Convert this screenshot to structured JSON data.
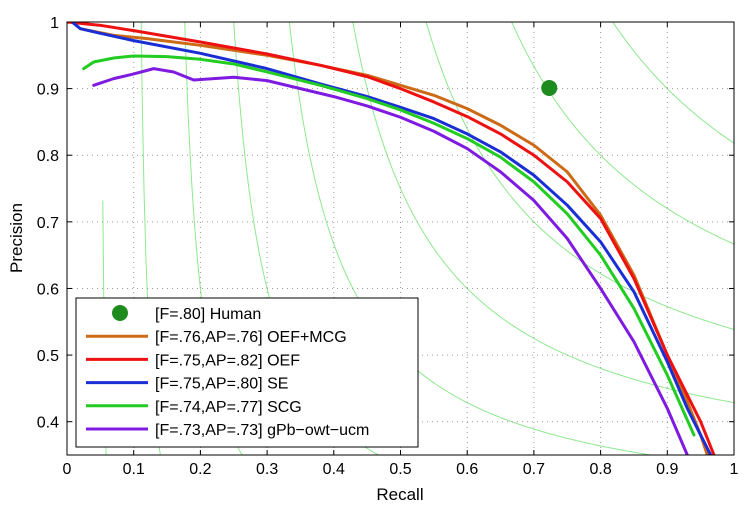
{
  "chart_data": {
    "type": "line",
    "title": "",
    "xlabel": "Recall",
    "ylabel": "Precision",
    "xlim": [
      0,
      1
    ],
    "ylim": [
      0.35,
      1
    ],
    "xticks": [
      "0",
      "0.1",
      "0.2",
      "0.3",
      "0.4",
      "0.5",
      "0.6",
      "0.7",
      "0.8",
      "0.9",
      "1"
    ],
    "yticks": [
      "0.4",
      "0.5",
      "0.6",
      "0.7",
      "0.8",
      "0.9",
      "1"
    ],
    "grid": true,
    "iso_f_color": "#8ee88e",
    "iso_f_values": [
      0.1,
      0.2,
      0.3,
      0.4,
      0.5,
      0.6,
      0.7,
      0.8,
      0.9
    ],
    "human": {
      "label": "[F=.80] Human",
      "recall": 0.723,
      "precision": 0.901,
      "color": "#1e8b1e"
    },
    "legend_position": "bottom-left",
    "series": [
      {
        "name": "[F=.76,AP=.76] OEF+MCG",
        "color": "#cc6a16",
        "x": [
          0.02,
          0.07,
          0.12,
          0.2,
          0.3,
          0.38,
          0.45,
          0.5,
          0.55,
          0.6,
          0.65,
          0.7,
          0.75,
          0.8,
          0.85,
          0.9,
          0.93,
          0.95,
          0.96
        ],
        "y": [
          0.99,
          0.98,
          0.975,
          0.965,
          0.95,
          0.935,
          0.92,
          0.905,
          0.89,
          0.87,
          0.845,
          0.815,
          0.775,
          0.71,
          0.62,
          0.5,
          0.43,
          0.38,
          0.35
        ]
      },
      {
        "name": "[F=.75,AP=.82] OEF",
        "color": "#ee1111",
        "x": [
          0.0,
          0.05,
          0.1,
          0.2,
          0.3,
          0.38,
          0.45,
          0.5,
          0.55,
          0.6,
          0.65,
          0.7,
          0.75,
          0.8,
          0.85,
          0.9,
          0.93,
          0.95,
          0.97
        ],
        "y": [
          1.0,
          0.995,
          0.987,
          0.97,
          0.952,
          0.935,
          0.918,
          0.9,
          0.88,
          0.858,
          0.832,
          0.8,
          0.76,
          0.705,
          0.615,
          0.5,
          0.44,
          0.4,
          0.35
        ]
      },
      {
        "name": "[F=.75,AP=.80] SE",
        "color": "#1a2ed6",
        "x": [
          0.01,
          0.02,
          0.05,
          0.1,
          0.2,
          0.3,
          0.38,
          0.45,
          0.5,
          0.55,
          0.6,
          0.65,
          0.7,
          0.75,
          0.8,
          0.85,
          0.9,
          0.93,
          0.95,
          0.965
        ],
        "y": [
          0.998,
          0.99,
          0.983,
          0.972,
          0.953,
          0.93,
          0.907,
          0.888,
          0.872,
          0.855,
          0.832,
          0.805,
          0.77,
          0.725,
          0.67,
          0.595,
          0.49,
          0.42,
          0.38,
          0.35
        ]
      },
      {
        "name": "[F=.74,AP=.77] SCG",
        "color": "#22cc22",
        "x": [
          0.025,
          0.04,
          0.07,
          0.1,
          0.15,
          0.2,
          0.25,
          0.3,
          0.38,
          0.45,
          0.5,
          0.55,
          0.6,
          0.65,
          0.7,
          0.75,
          0.8,
          0.85,
          0.9,
          0.94
        ],
        "y": [
          0.93,
          0.94,
          0.946,
          0.949,
          0.948,
          0.944,
          0.937,
          0.925,
          0.905,
          0.885,
          0.868,
          0.848,
          0.825,
          0.797,
          0.76,
          0.712,
          0.65,
          0.57,
          0.47,
          0.38
        ]
      },
      {
        "name": "[F=.73,AP=.73] gPb−owt−ucm",
        "color": "#7f1be0",
        "x": [
          0.04,
          0.07,
          0.1,
          0.13,
          0.16,
          0.19,
          0.22,
          0.25,
          0.3,
          0.35,
          0.4,
          0.45,
          0.5,
          0.55,
          0.6,
          0.65,
          0.7,
          0.75,
          0.8,
          0.85,
          0.9,
          0.93
        ],
        "y": [
          0.905,
          0.915,
          0.922,
          0.93,
          0.925,
          0.913,
          0.915,
          0.917,
          0.912,
          0.9,
          0.888,
          0.874,
          0.857,
          0.836,
          0.81,
          0.775,
          0.732,
          0.675,
          0.6,
          0.52,
          0.42,
          0.35
        ]
      }
    ]
  }
}
